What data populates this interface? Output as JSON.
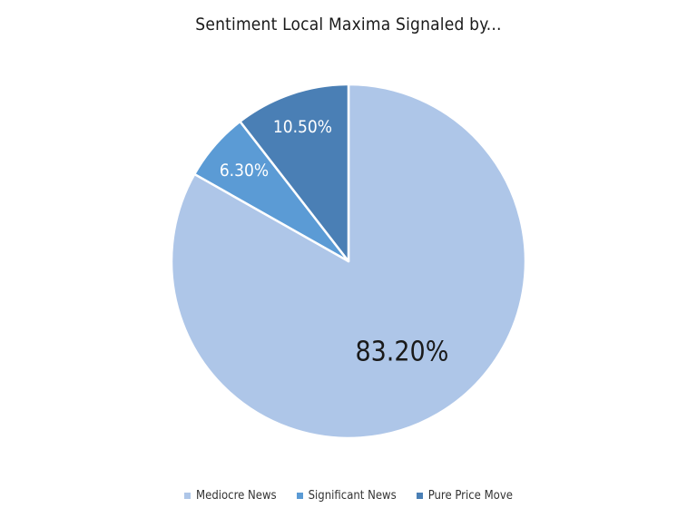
{
  "chart_data": {
    "type": "pie",
    "title": "Sentiment Local Maxima Signaled by...",
    "categories": [
      "Mediocre News",
      "Significant News",
      "Pure Price Move"
    ],
    "values": [
      83.2,
      6.3,
      10.5
    ],
    "data_labels": [
      "83.20%",
      "6.30%",
      "10.50%"
    ],
    "colors": [
      "#aec6e8",
      "#5b9bd5",
      "#4a7fb5"
    ],
    "label_colors": [
      "#1a1a1a",
      "#ffffff",
      "#ffffff"
    ],
    "legend_position": "bottom"
  }
}
